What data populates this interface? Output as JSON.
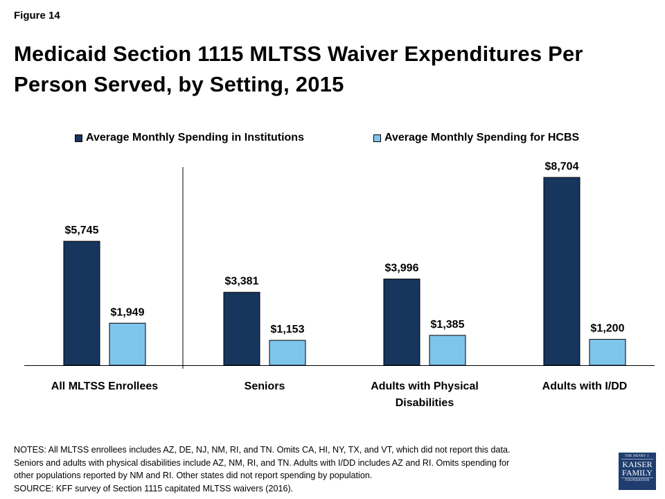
{
  "figure_label": "Figure 14",
  "title_line1": "Medicaid Section 1115 MLTSS Waiver Expenditures Per",
  "title_line2": "Person Served, by Setting, 2015",
  "colors": {
    "institutions": "#17365d",
    "hcbs": "#7ec5ec",
    "axis": "#000000",
    "logo_bg": "#1f3d6e"
  },
  "chart_data": {
    "type": "bar",
    "title": "Medicaid Section 1115 MLTSS Waiver Expenditures Per Person Served, by Setting, 2015",
    "xlabel": "",
    "ylabel": "",
    "ylim": [
      0,
      9000
    ],
    "grid": false,
    "legend_position": "top-center",
    "categories": [
      [
        "All MLTSS Enrollees"
      ],
      [
        "Seniors"
      ],
      [
        "Adults with Physical",
        "Disabilities"
      ],
      [
        "Adults with I/DD"
      ]
    ],
    "series": [
      {
        "name": "Average Monthly Spending in Institutions",
        "values": [
          5745,
          3381,
          3996,
          8704
        ],
        "labels": [
          "$5,745",
          "$3,381",
          "$3,996",
          "$8,704"
        ]
      },
      {
        "name": "Average Monthly Spending for HCBS",
        "values": [
          1949,
          1153,
          1385,
          1200
        ],
        "labels": [
          "$1,949",
          "$1,153",
          "$1,385",
          "$1,200"
        ]
      }
    ],
    "separator_after_category": 0
  },
  "notes": [
    "NOTES: All MLTSS enrollees includes AZ, DE, NJ, NM, RI, and TN. Omits CA, HI, NY, TX, and VT, which did not report this data.",
    "Seniors and adults with physical disabilities include AZ, NM, RI, and TN.  Adults with I/DD includes AZ and RI. Omits spending for",
    "other populations reported  by NM  and RI. Other states did not report  spending by population.",
    "SOURCE: KFF survey of Section 1115 capitated MLTSS waivers (2016)."
  ],
  "logo": {
    "line1": "THE HENRY J.",
    "line2": "KAISER",
    "line3": "FAMILY",
    "line4": "FOUNDATION"
  }
}
